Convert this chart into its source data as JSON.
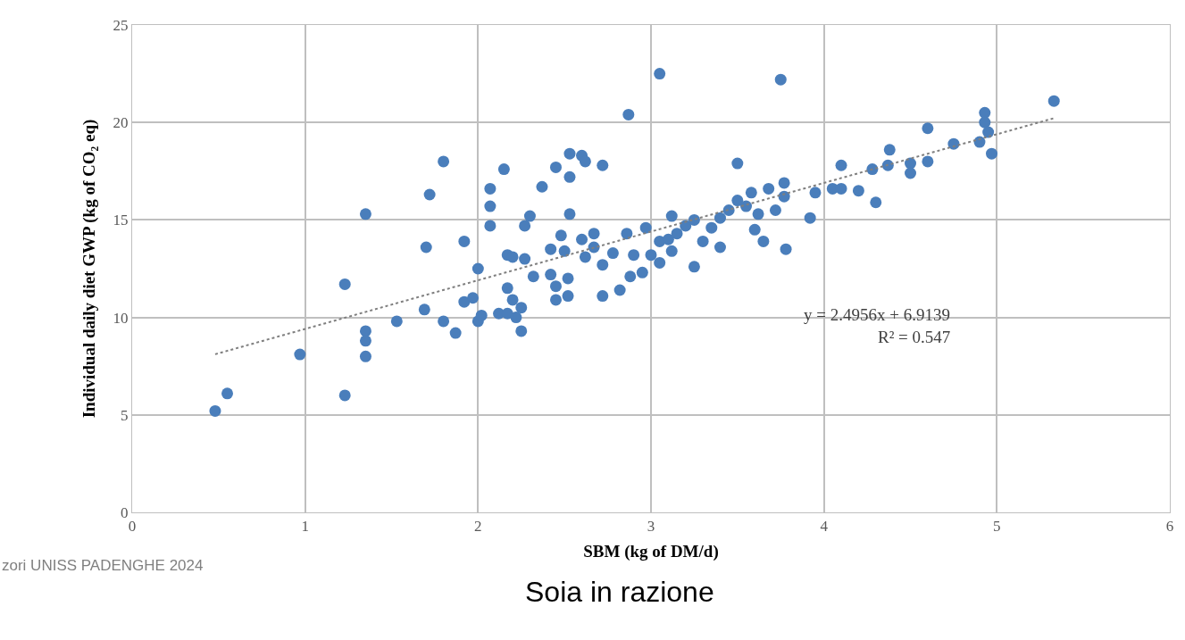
{
  "chart_data": {
    "type": "scatter",
    "xlabel": "SBM (kg of DM/d)",
    "ylabel": "Individual daily diet GWP (kg of CO₂ eq)",
    "xlim": [
      0,
      6
    ],
    "xticks": [
      0,
      1,
      2,
      3,
      4,
      5,
      6
    ],
    "ylim": [
      0,
      25
    ],
    "yticks": [
      0,
      5,
      10,
      15,
      20,
      25
    ],
    "grid": true,
    "marker": "circle",
    "series": [
      {
        "color": "#4a7ebb",
        "x": [
          0.48,
          0.55,
          0.97,
          1.23,
          1.23,
          1.35,
          1.35,
          1.35,
          1.35,
          1.53,
          1.69,
          1.7,
          1.72,
          1.8,
          1.8,
          1.87,
          1.92,
          1.92,
          1.97,
          2.0,
          2.0,
          2.02,
          2.07,
          2.07,
          2.07,
          2.12,
          2.15,
          2.17,
          2.17,
          2.17,
          2.2,
          2.2,
          2.22,
          2.25,
          2.25,
          2.27,
          2.27,
          2.3,
          2.32,
          2.37,
          2.42,
          2.42,
          2.45,
          2.45,
          2.45,
          2.48,
          2.5,
          2.52,
          2.52,
          2.53,
          2.53,
          2.53,
          2.6,
          2.6,
          2.62,
          2.62,
          2.67,
          2.67,
          2.72,
          2.72,
          2.72,
          2.78,
          2.82,
          2.86,
          2.87,
          2.88,
          2.9,
          2.95,
          2.97,
          3.0,
          3.05,
          3.05,
          3.05,
          3.1,
          3.12,
          3.12,
          3.15,
          3.2,
          3.25,
          3.25,
          3.3,
          3.35,
          3.4,
          3.4,
          3.45,
          3.5,
          3.5,
          3.55,
          3.58,
          3.6,
          3.62,
          3.65,
          3.68,
          3.72,
          3.75,
          3.77,
          3.77,
          3.78,
          3.92,
          3.95,
          4.05,
          4.1,
          4.1,
          4.2,
          4.28,
          4.3,
          4.37,
          4.38,
          4.5,
          4.5,
          4.6,
          4.6,
          4.75,
          4.9,
          4.93,
          4.93,
          4.95,
          4.97,
          5.33
        ],
        "values": [
          5.2,
          6.1,
          8.1,
          6.0,
          11.7,
          15.3,
          9.3,
          8.8,
          8.0,
          9.8,
          10.4,
          13.6,
          16.3,
          18.0,
          9.8,
          9.2,
          13.9,
          10.8,
          11.0,
          12.5,
          9.8,
          10.1,
          14.7,
          15.7,
          16.6,
          10.2,
          17.6,
          13.2,
          11.5,
          10.2,
          13.1,
          10.9,
          10.0,
          9.3,
          10.5,
          13.0,
          14.7,
          15.2,
          12.1,
          16.7,
          13.5,
          12.2,
          17.7,
          11.6,
          10.9,
          14.2,
          13.4,
          12.0,
          11.1,
          18.4,
          17.2,
          15.3,
          14.0,
          18.3,
          18.0,
          13.1,
          14.3,
          13.6,
          17.8,
          12.7,
          11.1,
          13.3,
          11.4,
          14.3,
          20.4,
          12.1,
          13.2,
          12.3,
          14.6,
          13.2,
          22.5,
          13.9,
          12.8,
          14.0,
          15.2,
          13.4,
          14.3,
          14.7,
          15.0,
          12.6,
          13.9,
          14.6,
          15.1,
          13.6,
          15.5,
          16.0,
          17.9,
          15.7,
          16.4,
          14.5,
          15.3,
          13.9,
          16.6,
          15.5,
          22.2,
          16.9,
          16.2,
          13.5,
          15.1,
          16.4,
          16.6,
          17.8,
          16.6,
          16.5,
          17.6,
          15.9,
          17.8,
          18.6,
          17.9,
          17.4,
          18.0,
          19.7,
          18.9,
          19.0,
          20.5,
          20.0,
          19.5,
          18.4,
          21.1
        ]
      },
      {
        "type": "line",
        "color": "#7f7f7f",
        "line_style": "dotted",
        "marker": "none",
        "x": [
          0.48,
          5.33
        ],
        "values": [
          8.11,
          20.22
        ]
      }
    ],
    "annotations": [
      "y = 2.4956x + 6.9139",
      "R² = 0.547",
      "zori UNISS PADENGHE 2024",
      "Soia in razione"
    ]
  }
}
